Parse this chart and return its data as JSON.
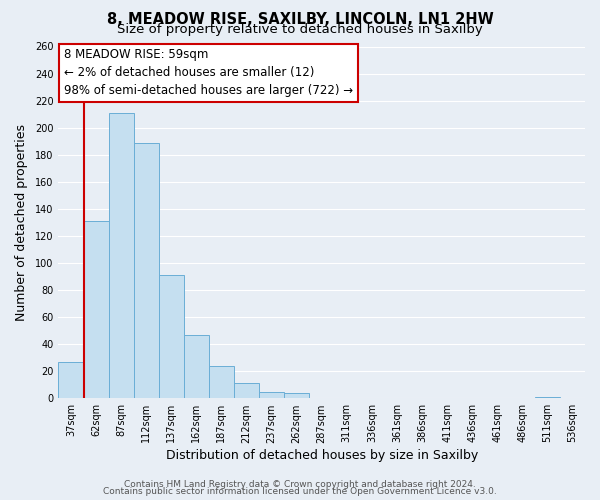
{
  "title": "8, MEADOW RISE, SAXILBY, LINCOLN, LN1 2HW",
  "subtitle": "Size of property relative to detached houses in Saxilby",
  "xlabel": "Distribution of detached houses by size in Saxilby",
  "ylabel": "Number of detached properties",
  "bar_color": "#c5dff0",
  "bar_edge_color": "#6aaed6",
  "highlight_bar_edge_color": "#cc0000",
  "categories": [
    "37sqm",
    "62sqm",
    "87sqm",
    "112sqm",
    "137sqm",
    "162sqm",
    "187sqm",
    "212sqm",
    "237sqm",
    "262sqm",
    "287sqm",
    "311sqm",
    "336sqm",
    "361sqm",
    "386sqm",
    "411sqm",
    "436sqm",
    "461sqm",
    "486sqm",
    "511sqm",
    "536sqm"
  ],
  "values": [
    27,
    131,
    211,
    189,
    91,
    47,
    24,
    11,
    5,
    4,
    0,
    0,
    0,
    0,
    0,
    0,
    0,
    0,
    0,
    1,
    0
  ],
  "red_line_x": 1,
  "ylim": [
    0,
    260
  ],
  "yticks": [
    0,
    20,
    40,
    60,
    80,
    100,
    120,
    140,
    160,
    180,
    200,
    220,
    240,
    260
  ],
  "annotation_title": "8 MEADOW RISE: 59sqm",
  "annotation_line1": "← 2% of detached houses are smaller (12)",
  "annotation_line2": "98% of semi-detached houses are larger (722) →",
  "footer_line1": "Contains HM Land Registry data © Crown copyright and database right 2024.",
  "footer_line2": "Contains public sector information licensed under the Open Government Licence v3.0.",
  "background_color": "#e8eef5",
  "grid_color": "#ffffff",
  "title_fontsize": 10.5,
  "subtitle_fontsize": 9.5,
  "axis_label_fontsize": 9,
  "tick_fontsize": 7,
  "footer_fontsize": 6.5,
  "annotation_fontsize": 8.5
}
